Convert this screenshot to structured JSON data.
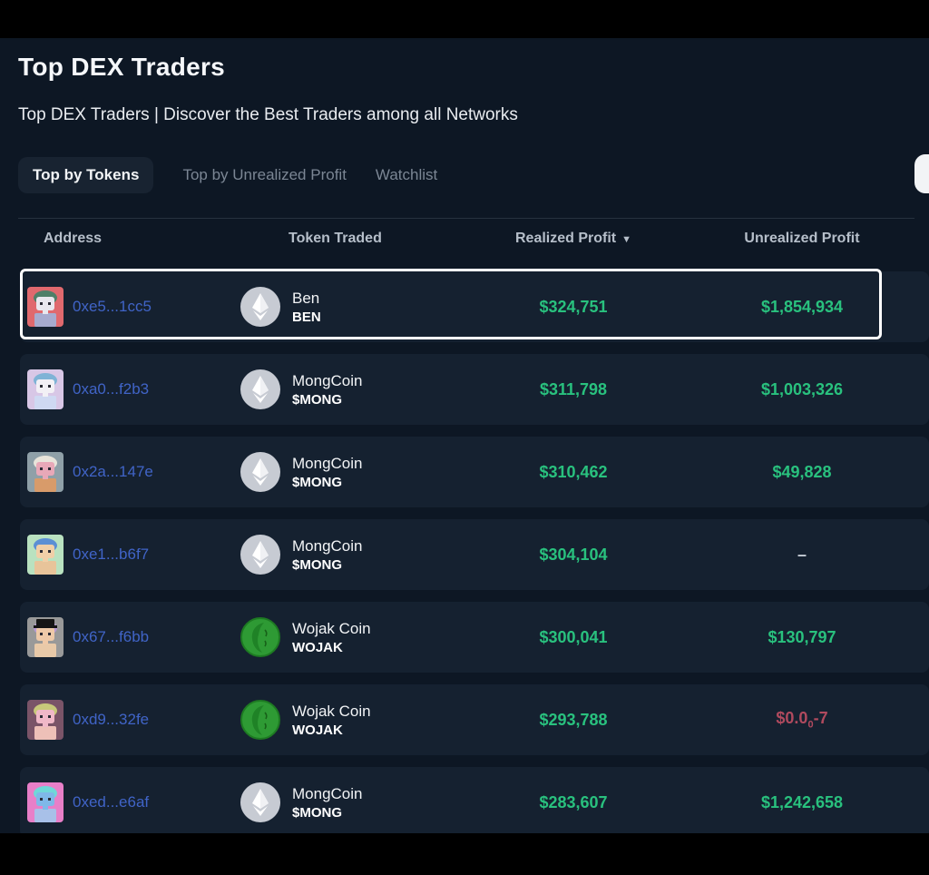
{
  "page": {
    "title": "Top DEX Traders",
    "subtitle": "Top DEX Traders | Discover the Best Traders among all Networks"
  },
  "tabs": [
    {
      "label": "Top by Tokens",
      "active": true
    },
    {
      "label": "Top by Unrealized Profit",
      "active": false
    },
    {
      "label": "Watchlist",
      "active": false
    }
  ],
  "colors": {
    "background": "#0d1724",
    "row_background": "#152130",
    "profit_green": "#29c17e",
    "loss_red": "#b04a5e",
    "address_blue": "#4064c7",
    "highlight_border": "#ffffff"
  },
  "table": {
    "columns": [
      "Address",
      "Token Traded",
      "Realized Profit",
      "Unrealized Profit"
    ],
    "sort_column": "Realized Profit",
    "sort_icon": "▼",
    "rows": [
      {
        "address": "0xe5...1cc5",
        "token_name": "Ben",
        "token_symbol": "BEN",
        "token_icon": "eth-icon",
        "realized": "$324,751",
        "unrealized": {
          "text": "$1,854,934",
          "color": "green"
        },
        "highlighted": true,
        "avatar": {
          "bg": "#e0696e",
          "hair": "#4f7f68",
          "skin": "#e9e7ee",
          "body": "#a7abcf",
          "hat": null
        }
      },
      {
        "address": "0xa0...f2b3",
        "token_name": "MongCoin",
        "token_symbol": "$MONG",
        "token_icon": "eth-icon",
        "realized": "$311,798",
        "unrealized": {
          "text": "$1,003,326",
          "color": "green"
        },
        "highlighted": false,
        "avatar": {
          "bg": "#d8c7e6",
          "hair": "#7fb3d6",
          "skin": "#f2f0f5",
          "body": "#cfd9f2",
          "hat": null
        }
      },
      {
        "address": "0x2a...147e",
        "token_name": "MongCoin",
        "token_symbol": "$MONG",
        "token_icon": "eth-icon",
        "realized": "$310,462",
        "unrealized": {
          "text": "$49,828",
          "color": "green"
        },
        "highlighted": false,
        "avatar": {
          "bg": "#8fa0a8",
          "hair": "#e8e4da",
          "skin": "#e8a8b8",
          "body": "#d89b6a",
          "hat": null
        }
      },
      {
        "address": "0xe1...b6f7",
        "token_name": "MongCoin",
        "token_symbol": "$MONG",
        "token_icon": "eth-icon",
        "realized": "$304,104",
        "unrealized": {
          "text": "–",
          "color": "muted"
        },
        "highlighted": false,
        "avatar": {
          "bg": "#b9e2c0",
          "hair": "#5b8fd4",
          "skin": "#f0cfa8",
          "body": "#e8c49a",
          "hat": null
        }
      },
      {
        "address": "0x67...f6bb",
        "token_name": "Wojak Coin",
        "token_symbol": "WOJAK",
        "token_icon": "wojak-icon",
        "realized": "$300,041",
        "unrealized": {
          "text": "$130,797",
          "color": "green"
        },
        "highlighted": false,
        "avatar": {
          "bg": "#999999",
          "hair": "#b89ad4",
          "skin": "#eec9a8",
          "body": "#e8c9a8",
          "hat": "#151515"
        }
      },
      {
        "address": "0xd9...32fe",
        "token_name": "Wojak Coin",
        "token_symbol": "WOJAK",
        "token_icon": "wojak-icon",
        "realized": "$293,788",
        "unrealized": {
          "text": "$0.0",
          "sub": "0",
          "rest": "-7",
          "color": "red"
        },
        "highlighted": false,
        "avatar": {
          "bg": "#7a5468",
          "hair": "#c8c87a",
          "skin": "#f0b8c8",
          "body": "#eec0b8",
          "hat": null
        }
      },
      {
        "address": "0xed...e6af",
        "token_name": "MongCoin",
        "token_symbol": "$MONG",
        "token_icon": "eth-icon",
        "realized": "$283,607",
        "unrealized": {
          "text": "$1,242,658",
          "color": "green"
        },
        "highlighted": false,
        "avatar": {
          "bg": "#e87fc8",
          "hair": "#6fd8d8",
          "skin": "#7fb8e8",
          "body": "#a8c0e8",
          "hat": null
        }
      }
    ]
  }
}
